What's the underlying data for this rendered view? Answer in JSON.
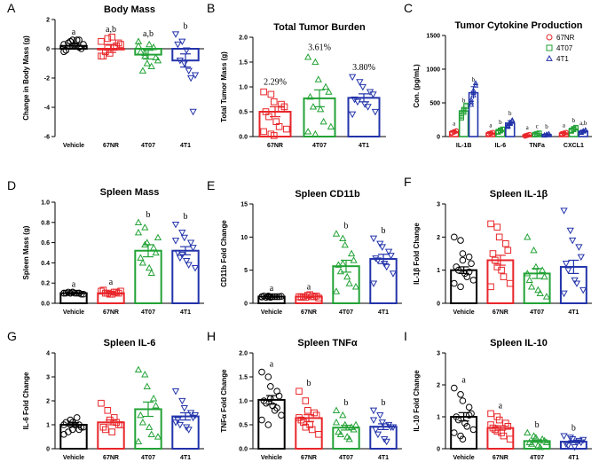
{
  "colors": {
    "vehicle": "#000000",
    "67NR": "#e8262a",
    "4T07": "#22a236",
    "4T1": "#2233aa"
  },
  "chart_data": [
    {
      "id": "A",
      "type": "bar",
      "title": "Body Mass",
      "ylabel": "Change in Body Mass (g)",
      "categories": [
        "Vehicle",
        "67NR",
        "4T07",
        "4T1"
      ],
      "ylim": [
        -6,
        2
      ],
      "yticks": [
        -6,
        -4,
        -2,
        0,
        2
      ],
      "means": [
        0.2,
        0.0,
        -0.4,
        -0.8
      ],
      "sem": [
        0.15,
        0.25,
        0.3,
        0.45
      ],
      "points": [
        [
          0.3,
          0.5,
          0.6,
          0.1,
          0.0,
          -0.1,
          0.4,
          0.2,
          0.6,
          0.3,
          -0.2,
          0.5,
          0.2,
          0.6
        ],
        [
          0.5,
          0.7,
          -0.3,
          0.2,
          0.4,
          -0.5,
          -0.2,
          0.8,
          0.1,
          0.3,
          -0.5,
          0.1
        ],
        [
          0.5,
          -0.3,
          -1.0,
          0.1,
          -0.6,
          -0.2,
          -1.5,
          0.3,
          -1.2,
          -0.8,
          0.2,
          -0.5
        ],
        [
          1.0,
          0.5,
          -1.0,
          -2.0,
          -4.3,
          0.3,
          -0.8,
          -0.1,
          -1.5,
          -1.8
        ]
      ],
      "sig": [
        "a",
        "a,b",
        "a,b",
        "b"
      ]
    },
    {
      "id": "B",
      "type": "bar",
      "title": "Total Tumor Burden",
      "ylabel": "Total Tumor Mass (g)",
      "categories": [
        "67NR",
        "4T07",
        "4T1"
      ],
      "colorKeys": [
        "67NR",
        "4T07",
        "4T1"
      ],
      "ylim": [
        0,
        2.0
      ],
      "yticks": [
        0.0,
        0.5,
        1.0,
        1.5,
        2.0
      ],
      "means": [
        0.5,
        0.77,
        0.78
      ],
      "sem": [
        0.1,
        0.17,
        0.08
      ],
      "points": [
        [
          0.9,
          0.85,
          0.7,
          0.65,
          0.6,
          0.5,
          0.4,
          0.3,
          0.2,
          0.15,
          0.1,
          0.05,
          0.02,
          0.55
        ],
        [
          1.6,
          1.5,
          1.15,
          1.0,
          0.9,
          0.8,
          0.6,
          0.55,
          0.3,
          0.2,
          0.1,
          0.05
        ],
        [
          1.2,
          1.1,
          1.0,
          0.9,
          0.85,
          0.75,
          0.7,
          0.65,
          0.6,
          0.5,
          0.45
        ]
      ],
      "annotations": [
        "2.29%",
        "3.61%",
        "3.80%"
      ]
    },
    {
      "id": "C",
      "type": "bar",
      "title": "Tumor Cytokine Production",
      "ylabel": "Con. (pg/mL)",
      "categories": [
        "IL-1B",
        "IL-6",
        "TNFa",
        "CXCL1"
      ],
      "ylim": [
        0,
        1500
      ],
      "yticks": [
        0,
        500,
        1000,
        1500
      ],
      "series": [
        {
          "name": "67NR",
          "means": [
            70,
            50,
            20,
            50
          ],
          "sem": [
            15,
            10,
            5,
            10
          ],
          "sig": [
            "a",
            "a",
            "a",
            "a"
          ]
        },
        {
          "name": "4T07",
          "means": [
            380,
            90,
            40,
            110
          ],
          "sem": [
            50,
            15,
            8,
            20
          ],
          "sig": [
            "b",
            "b",
            "c",
            "b"
          ]
        },
        {
          "name": "4T1",
          "means": [
            650,
            200,
            30,
            80
          ],
          "sem": [
            90,
            35,
            8,
            15
          ],
          "sig": [
            "b",
            "b",
            "b",
            "a,b"
          ]
        }
      ],
      "legend": [
        "67NR",
        "4T07",
        "4T1"
      ]
    },
    {
      "id": "D",
      "type": "bar",
      "title": "Spleen Mass",
      "ylabel": "Spleen Mass (g)",
      "categories": [
        "Vehicle",
        "67NR",
        "4T07",
        "4T1"
      ],
      "ylim": [
        0,
        1.0
      ],
      "yticks": [
        0.0,
        0.2,
        0.4,
        0.6,
        0.8,
        1.0
      ],
      "means": [
        0.1,
        0.1,
        0.52,
        0.52
      ],
      "sem": [
        0.005,
        0.008,
        0.06,
        0.04
      ],
      "points": [
        [
          0.1,
          0.1,
          0.11,
          0.1,
          0.09,
          0.1,
          0.11,
          0.1,
          0.1,
          0.09,
          0.1,
          0.1,
          0.11,
          0.1
        ],
        [
          0.12,
          0.1,
          0.09,
          0.11,
          0.1,
          0.13,
          0.1,
          0.09,
          0.11,
          0.12
        ],
        [
          0.8,
          0.75,
          0.6,
          0.55,
          0.5,
          0.45,
          0.4,
          0.35,
          0.3,
          0.65,
          0.7,
          0.58
        ],
        [
          0.78,
          0.7,
          0.65,
          0.6,
          0.55,
          0.5,
          0.45,
          0.42,
          0.38,
          0.35,
          0.62,
          0.48
        ]
      ],
      "sig": [
        "a",
        "a",
        "b",
        "b"
      ]
    },
    {
      "id": "E",
      "type": "bar",
      "title": "Spleen CD11b",
      "ylabel": "CD11b Fold Change",
      "categories": [
        "Vehicle",
        "67NR",
        "4T07",
        "4T1"
      ],
      "ylim": [
        0,
        15
      ],
      "yticks": [
        0,
        5,
        10,
        15
      ],
      "means": [
        1.0,
        1.0,
        5.6,
        6.7
      ],
      "sem": [
        0.05,
        0.08,
        0.9,
        0.7
      ],
      "points": [
        [
          1.0,
          1.1,
          0.9,
          1.0,
          1.0,
          1.1,
          0.9,
          1.0,
          1.0,
          1.05,
          0.95,
          1.0,
          1.0
        ],
        [
          1.0,
          0.9,
          1.2,
          1.0,
          1.1,
          0.9,
          1.0,
          1.3,
          1.0,
          0.8
        ],
        [
          10.5,
          9.8,
          8.8,
          7.5,
          6.5,
          5.8,
          4.8,
          4.0,
          3.0,
          2.5,
          1.8,
          6.0
        ],
        [
          9.8,
          9.0,
          8.5,
          7.8,
          7.2,
          6.8,
          6.5,
          6.0,
          5.5,
          4.5,
          3.0
        ]
      ],
      "sig": [
        "a",
        "a",
        "b",
        "b"
      ]
    },
    {
      "id": "F",
      "type": "bar",
      "title": "Spleen IL-1β",
      "ylabel": "IL-1β Fold Change",
      "categories": [
        "Vehicle",
        "67NR",
        "4T07",
        "4T1"
      ],
      "ylim": [
        0,
        3
      ],
      "yticks": [
        0,
        1,
        2,
        3
      ],
      "means": [
        1.0,
        1.3,
        0.9,
        1.1
      ],
      "sem": [
        0.1,
        0.15,
        0.15,
        0.2
      ],
      "points": [
        [
          2.0,
          1.9,
          1.5,
          1.4,
          1.2,
          1.1,
          1.0,
          0.9,
          0.8,
          0.7,
          0.6,
          0.5,
          1.3,
          0.95
        ],
        [
          2.4,
          2.3,
          2.0,
          1.8,
          1.6,
          1.5,
          1.3,
          1.0,
          0.8,
          0.6,
          0.5,
          1.1
        ],
        [
          2.0,
          1.6,
          1.1,
          1.0,
          0.8,
          0.7,
          0.5,
          0.4,
          0.3,
          0.2,
          0.9
        ],
        [
          2.8,
          2.2,
          1.9,
          1.7,
          1.4,
          1.2,
          1.0,
          0.7,
          0.6,
          0.4,
          0.3
        ]
      ],
      "sig": []
    },
    {
      "id": "G",
      "type": "bar",
      "title": "Spleen IL-6",
      "ylabel": "IL-6 Fold Change",
      "categories": [
        "Vehicle",
        "67NR",
        "4T07",
        "4T1"
      ],
      "ylim": [
        0,
        4
      ],
      "yticks": [
        0,
        1,
        2,
        3,
        4
      ],
      "means": [
        1.0,
        1.1,
        1.65,
        1.35
      ],
      "sem": [
        0.08,
        0.1,
        0.3,
        0.15
      ],
      "points": [
        [
          1.0,
          1.2,
          0.8,
          1.0,
          0.9,
          1.1,
          0.7,
          1.0,
          1.3,
          0.9,
          0.6,
          1.0,
          1.1,
          0.8
        ],
        [
          1.9,
          1.6,
          1.2,
          1.1,
          1.0,
          0.9,
          0.8,
          0.7,
          1.3,
          1.0
        ],
        [
          3.3,
          3.1,
          2.6,
          2.1,
          1.8,
          1.4,
          1.1,
          0.9,
          0.6,
          0.5,
          0.3
        ],
        [
          2.4,
          2.0,
          1.7,
          1.5,
          1.3,
          1.2,
          1.0,
          0.9,
          0.8,
          1.4,
          1.1
        ]
      ],
      "sig": []
    },
    {
      "id": "H",
      "type": "bar",
      "title": "Spleen TNFα",
      "ylabel": "TNFα Fold Change",
      "categories": [
        "Vehicle",
        "67NR",
        "4T07",
        "4T1"
      ],
      "ylim": [
        0,
        2.0
      ],
      "yticks": [
        0.0,
        0.5,
        1.0,
        1.5,
        2.0
      ],
      "means": [
        1.02,
        0.64,
        0.44,
        0.46
      ],
      "sem": [
        0.09,
        0.07,
        0.05,
        0.06
      ],
      "points": [
        [
          1.6,
          1.5,
          1.3,
          1.2,
          1.1,
          1.0,
          0.95,
          0.9,
          0.8,
          0.7,
          0.6,
          0.5,
          1.05,
          0.85
        ],
        [
          1.2,
          1.0,
          0.8,
          0.75,
          0.7,
          0.6,
          0.55,
          0.5,
          0.4,
          0.3,
          0.65,
          0.45
        ],
        [
          0.8,
          0.7,
          0.5,
          0.45,
          0.4,
          0.35,
          0.3,
          0.25,
          0.2,
          0.5,
          0.55
        ],
        [
          0.8,
          0.7,
          0.55,
          0.5,
          0.45,
          0.4,
          0.3,
          0.2,
          0.15,
          0.45,
          0.6
        ]
      ],
      "sig": [
        "a",
        "b",
        "b",
        "b"
      ]
    },
    {
      "id": "I",
      "type": "bar",
      "title": "Spleen IL-10",
      "ylabel": "IL-10 Fold Change",
      "categories": [
        "Vehicle",
        "67NR",
        "4T07",
        "4T1"
      ],
      "ylim": [
        0,
        3
      ],
      "yticks": [
        0,
        1,
        2,
        3
      ],
      "means": [
        1.0,
        0.65,
        0.24,
        0.22
      ],
      "sem": [
        0.13,
        0.07,
        0.04,
        0.03
      ],
      "points": [
        [
          1.9,
          1.7,
          1.5,
          1.3,
          1.1,
          1.0,
          0.9,
          0.8,
          0.7,
          0.6,
          0.5,
          0.4,
          0.3,
          1.05
        ],
        [
          1.1,
          1.0,
          0.9,
          0.8,
          0.7,
          0.65,
          0.6,
          0.5,
          0.4,
          0.3,
          0.75,
          0.55
        ],
        [
          0.5,
          0.4,
          0.35,
          0.3,
          0.25,
          0.2,
          0.15,
          0.1,
          0.05,
          0.2
        ],
        [
          0.4,
          0.35,
          0.3,
          0.25,
          0.2,
          0.15,
          0.1,
          0.05,
          0.2,
          0.28
        ]
      ],
      "sig": [
        "a",
        "a",
        "b",
        "b"
      ]
    }
  ]
}
